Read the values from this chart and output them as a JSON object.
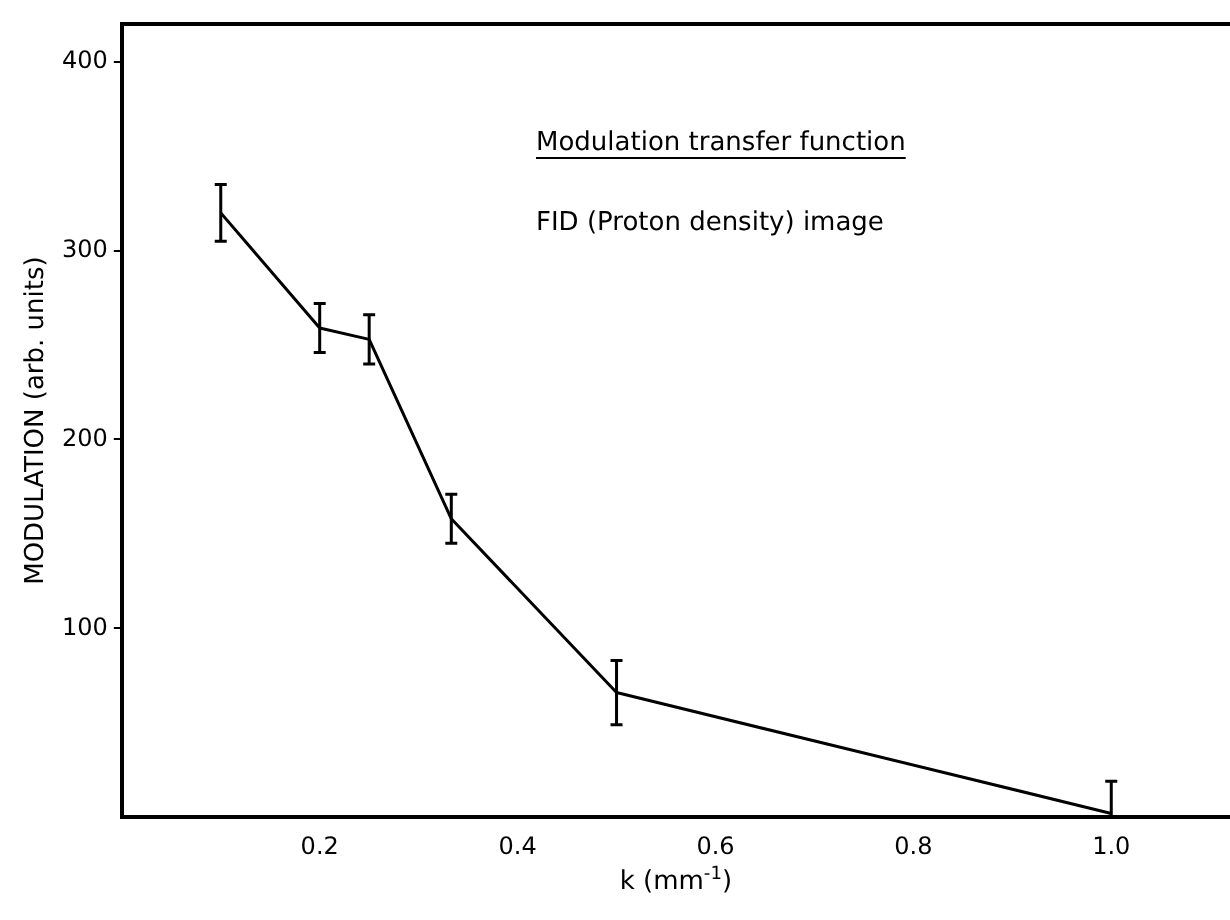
{
  "chart_data": {
    "type": "line",
    "xlabel": "k (mm$^{-1}$)",
    "ylabel": "MODULATION (arb. units)",
    "annotations": [
      "Modulation transfer function",
      "FID (Proton density) image"
    ],
    "x": [
      0.1,
      0.2,
      0.25,
      0.333,
      0.5,
      1.0
    ],
    "series": [
      {
        "color": "#000000",
        "values": [
          320,
          259,
          253,
          158,
          66,
          2
        ],
        "errors": [
          15,
          13,
          13,
          13,
          17,
          [
            0,
            19
          ]
        ]
      }
    ],
    "xlim": [
      0,
      1.12
    ],
    "xticks": [
      0.2,
      0.4,
      0.6,
      0.8,
      {
        "value": 1.0,
        "label": "1.0"
      }
    ],
    "ylim": [
      0,
      420
    ],
    "yticks": [
      100,
      200,
      300,
      400
    ],
    "grid": false,
    "legend": false,
    "marker": "none",
    "line_style": "solid"
  }
}
